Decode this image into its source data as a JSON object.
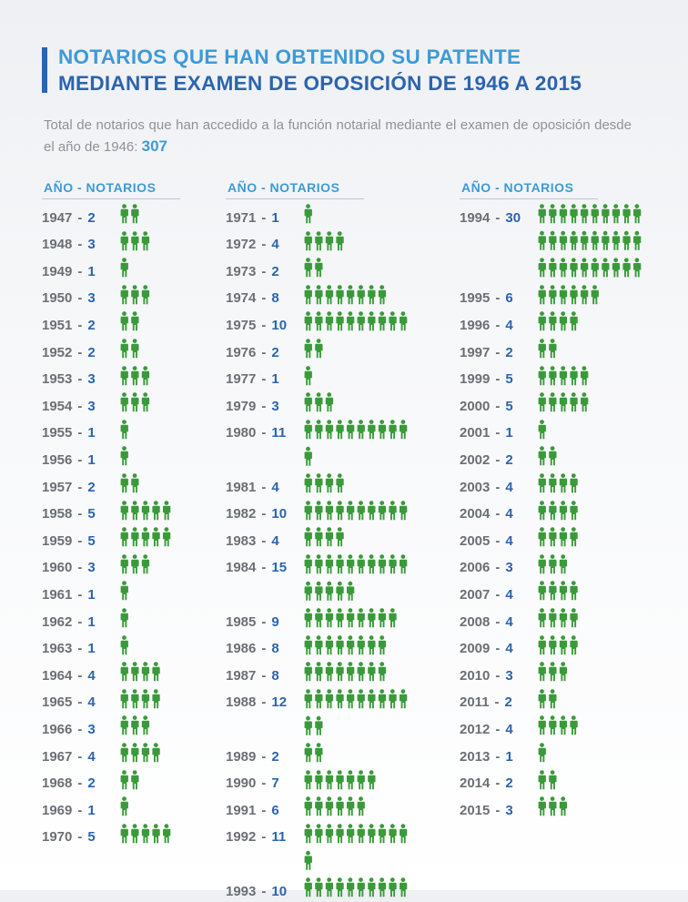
{
  "title": {
    "line1": "NOTARIOS QUE HAN OBTENIDO SU PATENTE",
    "line2": "MEDIANTE EXAMEN DE OPOSICIÓN DE 1946 A 2015"
  },
  "intro": {
    "text": "Total de notarios que han accedido a la función notarial mediante el examen de oposición desde el año de 1946:",
    "total": "307"
  },
  "column_header": "AÑO  -  NOTARIOS",
  "colors": {
    "icon": "#3a9a3a",
    "accent": "#3f9ad6",
    "dark_blue": "#2c64ad",
    "year_gray": "#6b6f75"
  },
  "chart_data": {
    "type": "table",
    "title": "NOTARIOS QUE HAN OBTENIDO SU PATENTE MEDIANTE EXAMEN DE OPOSICIÓN DE 1946 A 2015",
    "total": 307,
    "columns": [
      [
        {
          "year": "1947",
          "count": 2
        },
        {
          "year": "1948",
          "count": 3
        },
        {
          "year": "1949",
          "count": 1
        },
        {
          "year": "1950",
          "count": 3
        },
        {
          "year": "1951",
          "count": 2
        },
        {
          "year": "1952",
          "count": 2
        },
        {
          "year": "1953",
          "count": 3
        },
        {
          "year": "1954",
          "count": 3
        },
        {
          "year": "1955",
          "count": 1
        },
        {
          "year": "1956",
          "count": 1
        },
        {
          "year": "1957",
          "count": 2
        },
        {
          "year": "1958",
          "count": 5
        },
        {
          "year": "1959",
          "count": 5
        },
        {
          "year": "1960",
          "count": 3
        },
        {
          "year": "1961",
          "count": 1
        },
        {
          "year": "1962",
          "count": 1
        },
        {
          "year": "1963",
          "count": 1
        },
        {
          "year": "1964",
          "count": 4
        },
        {
          "year": "1965",
          "count": 4
        },
        {
          "year": "1966",
          "count": 3
        },
        {
          "year": "1967",
          "count": 4
        },
        {
          "year": "1968",
          "count": 2
        },
        {
          "year": "1969",
          "count": 1
        },
        {
          "year": "1970",
          "count": 5
        }
      ],
      [
        {
          "year": "1971",
          "count": 1
        },
        {
          "year": "1972",
          "count": 4
        },
        {
          "year": "1973",
          "count": 2
        },
        {
          "year": "1974",
          "count": 8
        },
        {
          "year": "1975",
          "count": 10
        },
        {
          "year": "1976",
          "count": 2
        },
        {
          "year": "1977",
          "count": 1
        },
        {
          "year": "1979",
          "count": 3
        },
        {
          "year": "1980",
          "count": 11
        },
        {
          "year": "1981",
          "count": 4
        },
        {
          "year": "1982",
          "count": 10
        },
        {
          "year": "1983",
          "count": 4
        },
        {
          "year": "1984",
          "count": 15
        },
        {
          "year": "1985",
          "count": 9
        },
        {
          "year": "1986",
          "count": 8
        },
        {
          "year": "1987",
          "count": 8
        },
        {
          "year": "1988",
          "count": 12
        },
        {
          "year": "1989",
          "count": 2
        },
        {
          "year": "1990",
          "count": 7
        },
        {
          "year": "1991",
          "count": 6
        },
        {
          "year": "1992",
          "count": 11
        },
        {
          "year": "1993",
          "count": 10
        }
      ],
      [
        {
          "year": "1994",
          "count": 30
        },
        {
          "year": "1995",
          "count": 6
        },
        {
          "year": "1996",
          "count": 4
        },
        {
          "year": "1997",
          "count": 2
        },
        {
          "year": "1999",
          "count": 5
        },
        {
          "year": "2000",
          "count": 5
        },
        {
          "year": "2001",
          "count": 1
        },
        {
          "year": "2002",
          "count": 2
        },
        {
          "year": "2003",
          "count": 4
        },
        {
          "year": "2004",
          "count": 4
        },
        {
          "year": "2005",
          "count": 4
        },
        {
          "year": "2006",
          "count": 3
        },
        {
          "year": "2007",
          "count": 4
        },
        {
          "year": "2008",
          "count": 4
        },
        {
          "year": "2009",
          "count": 4
        },
        {
          "year": "2010",
          "count": 3
        },
        {
          "year": "2011",
          "count": 2
        },
        {
          "year": "2012",
          "count": 4
        },
        {
          "year": "2013",
          "count": 1
        },
        {
          "year": "2014",
          "count": 2
        },
        {
          "year": "2015",
          "count": 3
        }
      ]
    ]
  }
}
